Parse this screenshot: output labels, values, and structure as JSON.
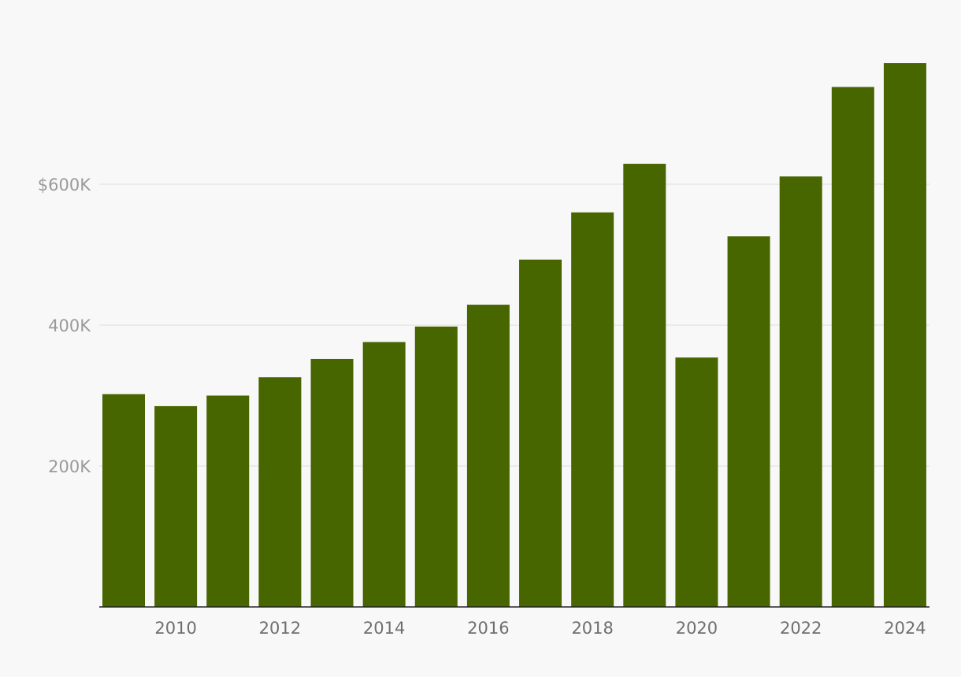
{
  "chart_data": {
    "type": "bar",
    "categories": [
      "2009",
      "2010",
      "2011",
      "2012",
      "2013",
      "2014",
      "2015",
      "2016",
      "2017",
      "2018",
      "2019",
      "2020",
      "2021",
      "2022",
      "2023",
      "2024"
    ],
    "values": [
      302000,
      285000,
      300000,
      326000,
      352000,
      376000,
      398000,
      429000,
      493000,
      560000,
      629000,
      354000,
      526000,
      611000,
      738000,
      772000
    ],
    "x_tick_labels": [
      "2010",
      "2012",
      "2014",
      "2016",
      "2018",
      "2020",
      "2022",
      "2024"
    ],
    "y_ticks": [
      {
        "value": 200000,
        "label": "200K"
      },
      {
        "value": 400000,
        "label": "400K"
      },
      {
        "value": 600000,
        "label": "$600K"
      }
    ],
    "ylim": [
      0,
      800000
    ],
    "grid": true,
    "title": "",
    "xlabel": "",
    "ylabel": "",
    "bar_color": "#486600"
  }
}
